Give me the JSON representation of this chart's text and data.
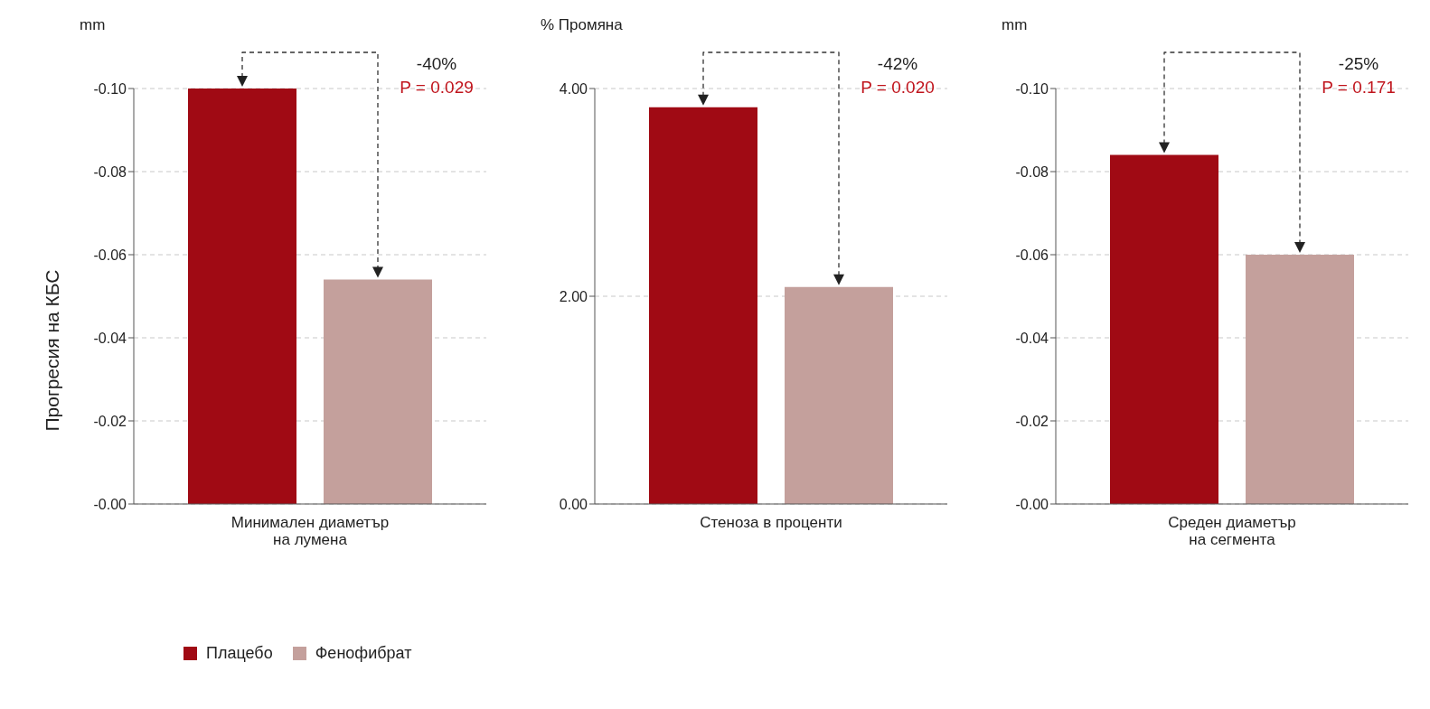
{
  "chart_data": [
    {
      "type": "bar",
      "subtitle": "mm",
      "ylabel": "Прогресия на КБС",
      "categories": [
        "Минимален диаметър\nна лумена"
      ],
      "series": [
        {
          "name": "Плацебо",
          "color": "#a00a14",
          "values": [
            -0.1
          ]
        },
        {
          "name": "Фенофибрат",
          "color": "#c4a09c",
          "values": [
            -0.054
          ]
        }
      ],
      "ylim": [
        0,
        -0.1
      ],
      "yticks": [
        {
          "value": 0,
          "label": "-0.00"
        },
        {
          "value": -0.02,
          "label": "-0.02"
        },
        {
          "value": -0.04,
          "label": "-0.04"
        },
        {
          "value": -0.06,
          "label": "-0.06"
        },
        {
          "value": -0.08,
          "label": "-0.08"
        },
        {
          "value": -0.1,
          "label": "-0.10"
        }
      ],
      "grid": "y",
      "legend": "bottom left",
      "annotations": [
        "-40%",
        "P = 0.029"
      ]
    },
    {
      "type": "bar",
      "subtitle": "% Промяна",
      "categories": [
        "Стеноза в проценти"
      ],
      "series": [
        {
          "color": "#a00a14",
          "values": [
            3.82
          ]
        },
        {
          "color": "#c4a09c",
          "values": [
            2.09
          ]
        }
      ],
      "ylim": [
        0,
        4
      ],
      "yticks": [
        {
          "value": 0,
          "label": "0.00"
        },
        {
          "value": 2,
          "label": "2.00"
        },
        {
          "value": 4,
          "label": "4.00"
        }
      ],
      "grid": "y",
      "annotations": [
        "-42%",
        "P = 0.020"
      ]
    },
    {
      "type": "bar",
      "subtitle": "mm",
      "categories": [
        "Среден диаметър\nна сегмента"
      ],
      "series": [
        {
          "color": "#a00a14",
          "values": [
            -0.084
          ]
        },
        {
          "color": "#c4a09c",
          "values": [
            -0.06
          ]
        }
      ],
      "ylim": [
        0,
        -0.1
      ],
      "yticks": [
        {
          "value": 0,
          "label": "-0.00"
        },
        {
          "value": -0.02,
          "label": "-0.02"
        },
        {
          "value": -0.04,
          "label": "-0.04"
        },
        {
          "value": -0.06,
          "label": "-0.06"
        },
        {
          "value": -0.08,
          "label": "-0.08"
        },
        {
          "value": -0.1,
          "label": "-0.10"
        }
      ],
      "grid": "y",
      "annotations": [
        "-25%",
        "P = 0.171"
      ]
    }
  ]
}
